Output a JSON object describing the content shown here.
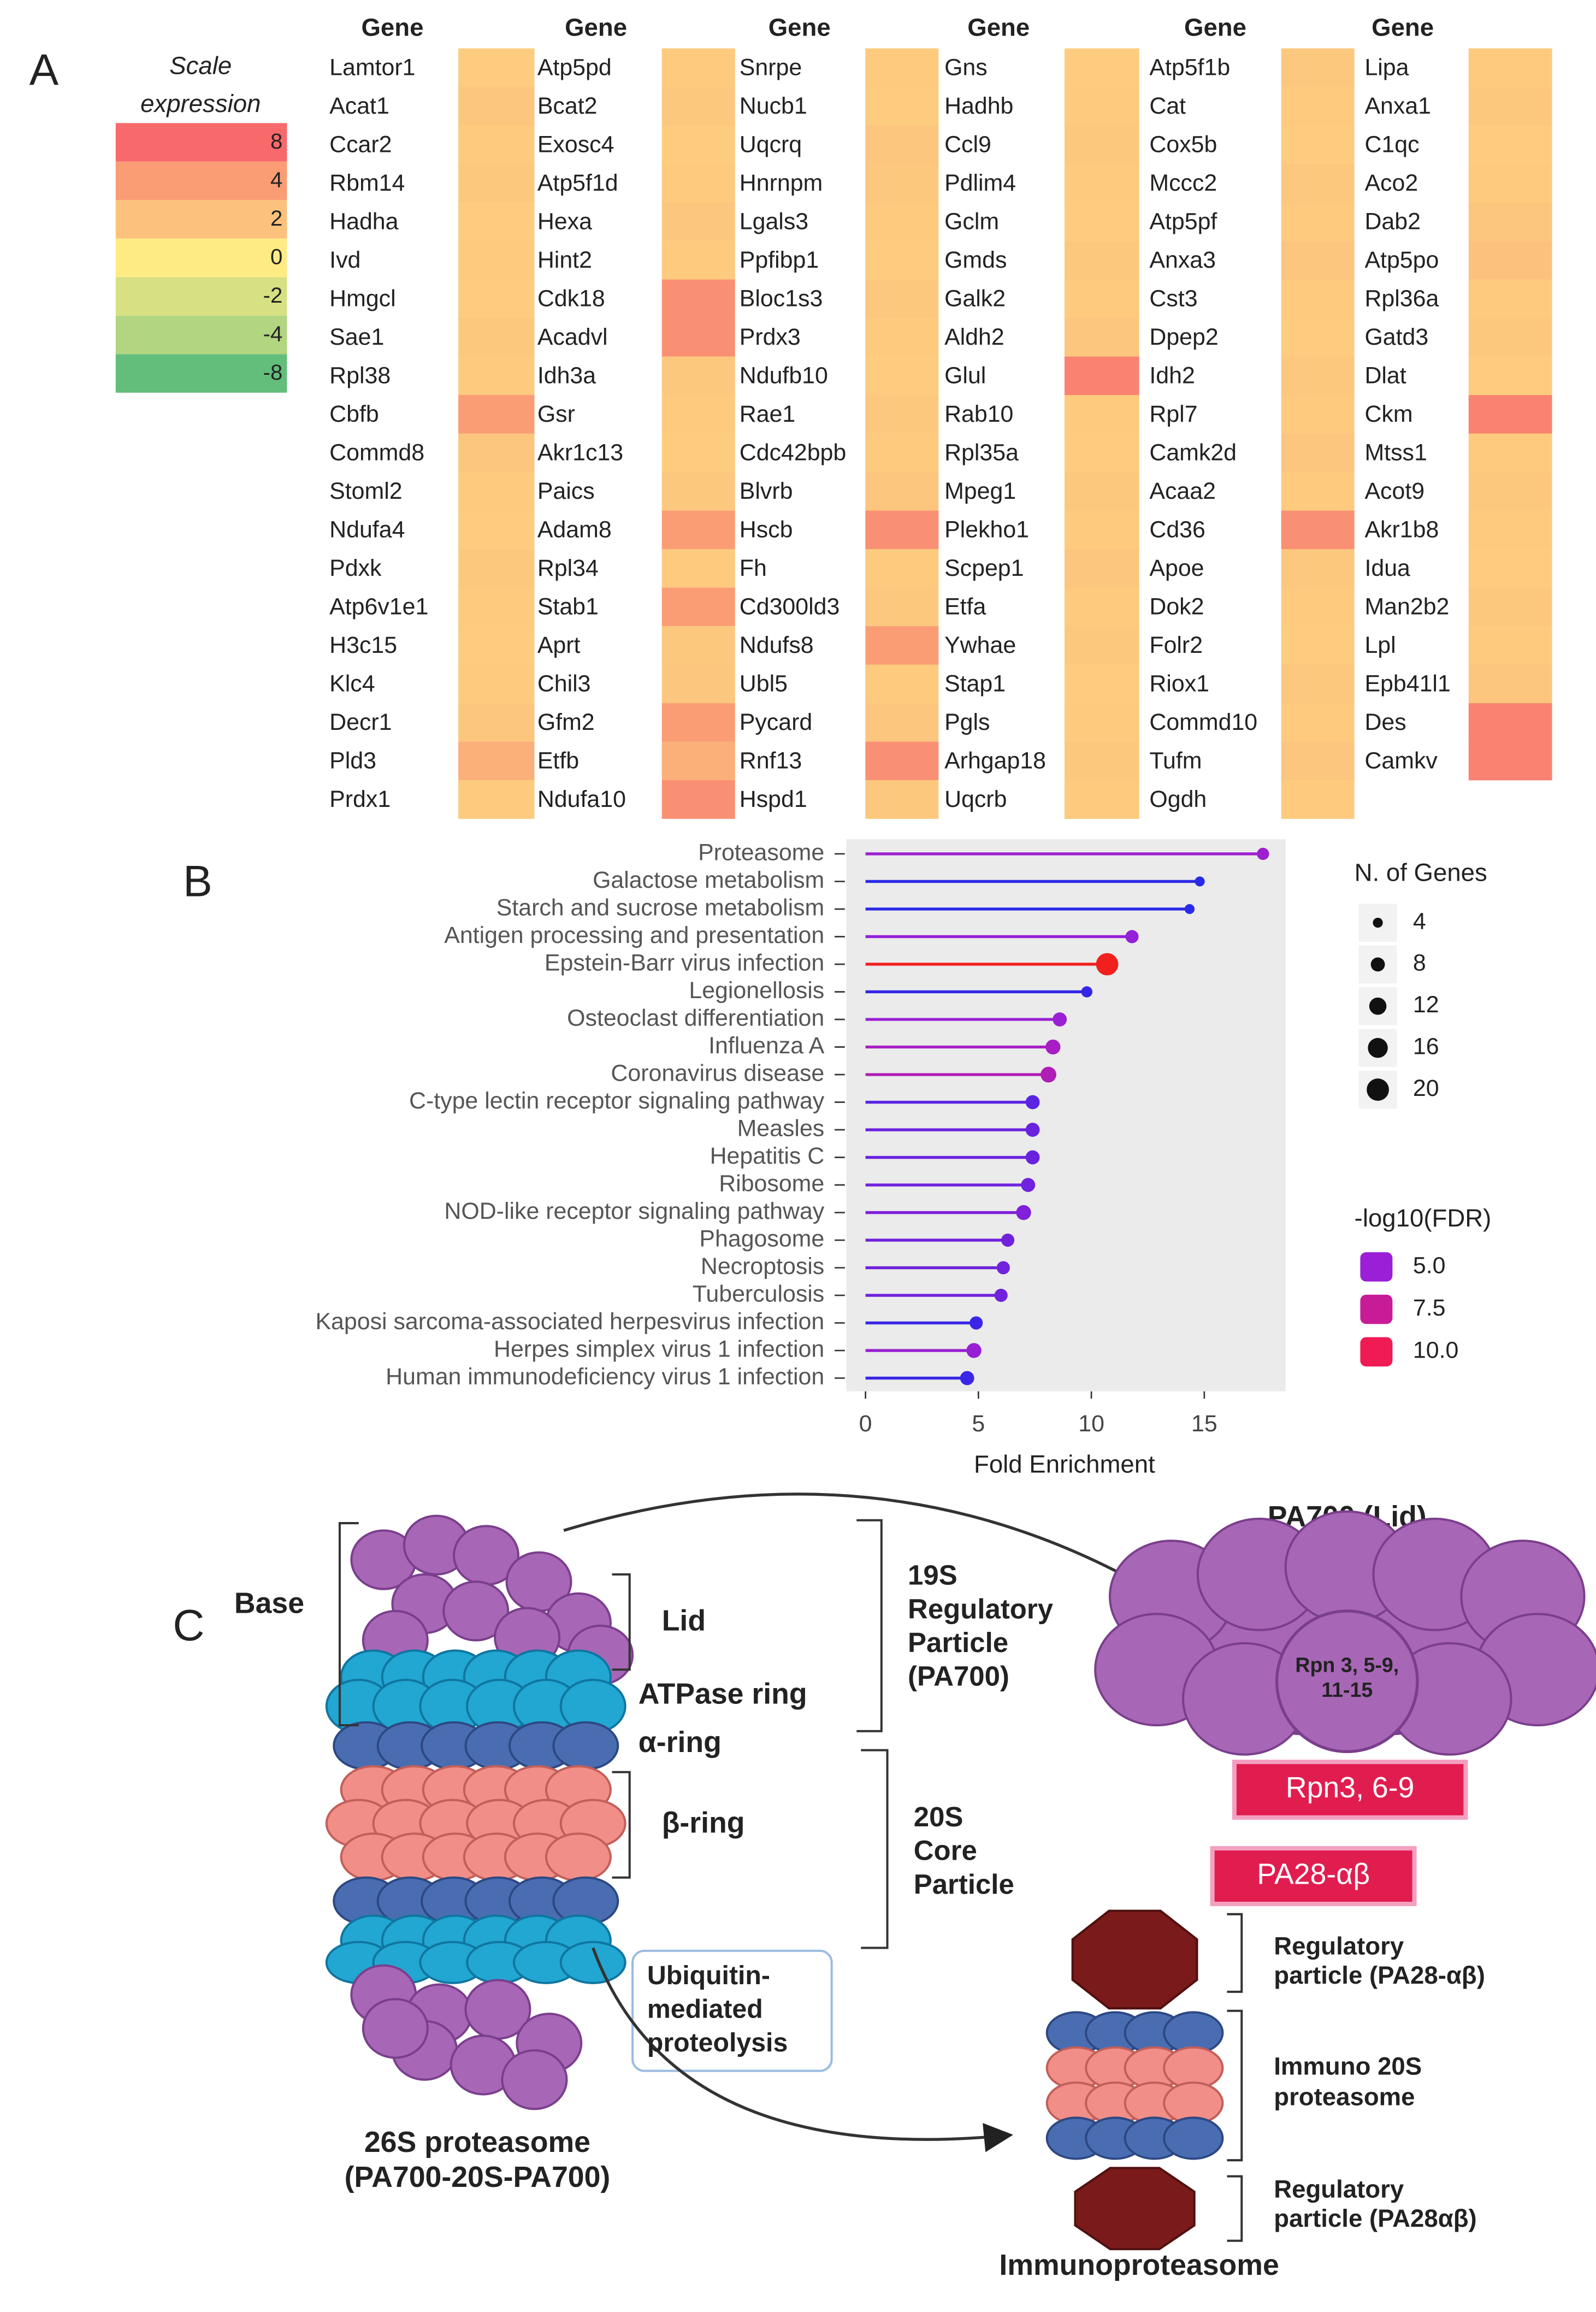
{
  "panel_labels": [
    "A",
    "B",
    "C"
  ],
  "heatmap": {
    "legend": {
      "title": [
        "Scale",
        "expression"
      ],
      "stops": [
        {
          "value": 8,
          "color": "#f8696b"
        },
        {
          "value": 4,
          "color": "#fa9d75"
        },
        {
          "value": 2,
          "color": "#fcc27d"
        },
        {
          "value": 0,
          "color": "#ffeb84"
        },
        {
          "value": -2,
          "color": "#d7e082"
        },
        {
          "value": -4,
          "color": "#b1d580"
        },
        {
          "value": -8,
          "color": "#63be7b"
        }
      ]
    },
    "columns": [
      {
        "header": "Gene",
        "genes": [
          "Lamtor1",
          "Acat1",
          "Ccar2",
          "Rbm14",
          "Hadha",
          "Ivd",
          "Hmgcl",
          "Sae1",
          "Rpl38",
          "Cbfb",
          "Commd8",
          "Stoml2",
          "Ndufa4",
          "Pdxk",
          "Atp6v1e1",
          "H3c15",
          "Klc4",
          "Decr1",
          "Pld3",
          "Prdx1"
        ],
        "values": [
          1.5,
          1.8,
          1.6,
          1.7,
          1.5,
          1.6,
          1.5,
          1.7,
          1.6,
          4,
          1.8,
          1.6,
          1.5,
          1.7,
          1.6,
          1.5,
          1.6,
          1.8,
          3,
          1.6
        ]
      },
      {
        "header": "Gene",
        "genes": [
          "Atp5pd",
          "Bcat2",
          "Exosc4",
          "Atp5f1d",
          "Hexa",
          "Hint2",
          "Cdk18",
          "Acadvl",
          "Idh3a",
          "Gsr",
          "Akr1c13",
          "Paics",
          "Adam8",
          "Rpl34",
          "Stab1",
          "Aprt",
          "Chil3",
          "Gfm2",
          "Etfb",
          "Ndufa10"
        ],
        "values": [
          1.6,
          1.7,
          1.5,
          1.6,
          1.8,
          1.6,
          5,
          5,
          1.7,
          1.6,
          1.5,
          1.7,
          4,
          1.6,
          4,
          1.7,
          1.8,
          4,
          3,
          5
        ]
      },
      {
        "header": "Gene",
        "genes": [
          "Snrpe",
          "Nucb1",
          "Uqcrq",
          "Hnrnpm",
          "Lgals3",
          "Ppfibp1",
          "Bloc1s3",
          "Prdx3",
          "Ndufb10",
          "Rae1",
          "Cdc42bpb",
          "Blvrb",
          "Hscb",
          "Fh",
          "Cd300ld3",
          "Ndufs8",
          "Ubl5",
          "Pycard",
          "Rnf13",
          "Hspd1"
        ],
        "values": [
          1.6,
          1.5,
          1.8,
          1.7,
          1.6,
          1.5,
          1.7,
          1.6,
          1.5,
          1.7,
          1.6,
          1.8,
          5,
          1.6,
          1.7,
          4,
          1.6,
          1.8,
          5,
          1.7
        ]
      },
      {
        "header": "Gene",
        "genes": [
          "Gns",
          "Hadhb",
          "Ccl9",
          "Pdlim4",
          "Gclm",
          "Gmds",
          "Galk2",
          "Aldh2",
          "Glul",
          "Rab10",
          "Rpl35a",
          "Mpeg1",
          "Plekho1",
          "Scpep1",
          "Etfa",
          "Ywhae",
          "Stap1",
          "Pgls",
          "Arhgap18",
          "Uqcrb"
        ],
        "values": [
          1.5,
          1.6,
          1.7,
          1.6,
          1.5,
          1.7,
          1.6,
          1.8,
          6,
          1.6,
          1.5,
          1.7,
          1.6,
          1.8,
          1.6,
          1.7,
          1.5,
          1.6,
          1.7,
          1.6
        ]
      },
      {
        "header": "Gene",
        "genes": [
          "Atp5f1b",
          "Cat",
          "Cox5b",
          "Mccc2",
          "Atp5pf",
          "Anxa3",
          "Cst3",
          "Dpep2",
          "Idh2",
          "Rpl7",
          "Camk2d",
          "Acaa2",
          "Cd36",
          "Apoe",
          "Dok2",
          "Folr2",
          "Riox1",
          "Commd10",
          "Tufm",
          "Ogdh"
        ],
        "values": [
          1.7,
          1.6,
          1.5,
          1.7,
          1.6,
          1.8,
          1.6,
          1.5,
          1.7,
          1.6,
          1.8,
          1.6,
          5,
          1.7,
          1.6,
          1.5,
          1.7,
          1.6,
          1.8,
          1.6
        ]
      },
      {
        "header": "Gene",
        "genes": [
          "Lipa",
          "Anxa1",
          "C1qc",
          "Aco2",
          "Dab2",
          "Atp5po",
          "Rpl36a",
          "Gatd3",
          "Dlat",
          "Ckm",
          "Mtss1",
          "Acot9",
          "Akr1b8",
          "Idua",
          "Man2b2",
          "Lpl",
          "Epb41l1",
          "Des",
          "Camkv"
        ],
        "values": [
          1.6,
          1.7,
          1.5,
          1.6,
          1.8,
          2,
          1.6,
          1.7,
          1.5,
          6,
          1.6,
          1.7,
          1.6,
          1.5,
          1.7,
          1.6,
          1.8,
          6,
          6
        ]
      }
    ]
  },
  "chart_data": {
    "type": "lollipop",
    "categories": [
      "Proteasome",
      "Galactose metabolism",
      "Starch and sucrose metabolism",
      "Antigen processing and presentation",
      "Epstein-Barr virus infection",
      "Legionellosis",
      "Osteoclast differentiation",
      "Influenza A",
      "Coronavirus disease",
      "C-type lectin receptor signaling pathway",
      "Measles",
      "Hepatitis C",
      "Ribosome",
      "NOD-like receptor signaling pathway",
      "Phagosome",
      "Necroptosis",
      "Tuberculosis",
      "Kaposi sarcoma-associated herpesvirus infection",
      "Herpes simplex virus 1 infection",
      "Human immunodeficiency virus 1 infection"
    ],
    "values": [
      17.6,
      14.8,
      14.35,
      11.8,
      10.7,
      9.8,
      8.6,
      8.3,
      8.1,
      7.4,
      7.4,
      7.4,
      7.2,
      7.0,
      6.3,
      6.1,
      6.0,
      4.9,
      4.8,
      4.5
    ],
    "sizes": [
      6,
      4,
      4,
      7,
      20,
      5,
      8,
      9,
      10,
      8,
      8,
      8,
      8,
      9,
      7,
      7,
      7,
      7,
      9,
      8
    ],
    "colors": [
      "#9c1fd0",
      "#2a2ae8",
      "#2a2ae8",
      "#9420d8",
      "#f0201e",
      "#3326e6",
      "#9a20d4",
      "#a81ec4",
      "#b01cb6",
      "#5a24e2",
      "#6a22de",
      "#6a22de",
      "#7022dc",
      "#8020d8",
      "#7022dc",
      "#7022dc",
      "#7022dc",
      "#3a26e6",
      "#9820d4",
      "#3a26e6"
    ],
    "x_label": "Fold Enrichment",
    "xlim": [
      -0.85,
      18.6
    ],
    "xticks": [
      0,
      5,
      10,
      15
    ],
    "size_legend": {
      "title": "N. of Genes",
      "values": [
        4,
        8,
        12,
        16,
        20
      ]
    },
    "color_legend": {
      "title": "-log10(FDR)",
      "items": [
        {
          "value": 5,
          "label": "5.0",
          "color": "#9a1fd6"
        },
        {
          "value": 7.5,
          "label": "7.5",
          "color": "#c81b98"
        },
        {
          "value": 10,
          "label": "10.0",
          "color": "#f01a55"
        }
      ]
    }
  },
  "diagram": {
    "base": "Base",
    "lid": "Lid",
    "atpase_ring": "ATPase ring",
    "alpha_ring": "α-ring",
    "beta_ring": "β-ring",
    "regulatory_19s": [
      "19S",
      "Regulatory",
      "Particle",
      "(PA700)"
    ],
    "core_20s": [
      "20S",
      "Core",
      "Particle"
    ],
    "ubiquitin": [
      "Ubiquitin-",
      "mediated",
      "proteolysis"
    ],
    "proteasome_26s": [
      "26S proteasome",
      "(PA700-20S-PA700)"
    ],
    "pa700_title": "PA700 (Lid)",
    "pa700_subunits": [
      "Rpn 3, 5-9,",
      "11-15"
    ],
    "rpn_box": "Rpn3, 6-9",
    "pa28_box": "PA28-αβ",
    "regulatory_top": [
      "Regulatory",
      "particle (PA28-αβ)"
    ],
    "immuno_20s": [
      "Immuno 20S",
      "proteasome"
    ],
    "regulatory_bottom": [
      "Regulatory",
      "particle (PA28αβ)"
    ],
    "immunoproteasome": "Immunoproteasome"
  }
}
